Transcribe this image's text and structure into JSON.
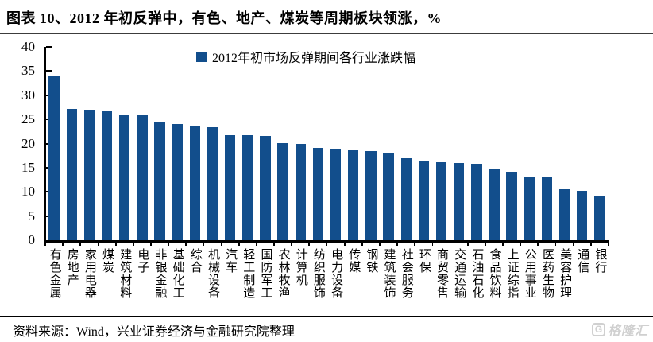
{
  "title": "图表 10、2012 年初反弹中，有色、地产、煤炭等周期板块领涨，%",
  "source": "资料来源：Wind，兴业证券经济与金融研究院整理",
  "logo": {
    "glyph": "G",
    "text": "格隆汇"
  },
  "colors": {
    "bar": "#124E8C",
    "axis": "#000000",
    "title_rule": "#3C3C3C",
    "footer_rule": "#000000",
    "logo": "#D0D0D0"
  },
  "chart_data": {
    "type": "bar",
    "title": "图表 10、2012 年初反弹中，有色、地产、煤炭等周期板块领涨，%",
    "legend": "2012年初市场反弹期间各行业涨跌幅",
    "legend_position": "top-center",
    "grid": false,
    "unit": "%",
    "ylim": [
      0,
      40
    ],
    "yticks": [
      0,
      5,
      10,
      15,
      20,
      25,
      30,
      35,
      40
    ],
    "categories": [
      "有色金属",
      "房地产",
      "家用电器",
      "煤炭",
      "建筑材料",
      "电子",
      "非银金融",
      "基础化工",
      "综合",
      "机械设备",
      "汽车",
      "轻工制造",
      "国防军工",
      "农林牧渔",
      "计算机",
      "纺织服饰",
      "电力设备",
      "传媒",
      "钢铁",
      "建筑装饰",
      "社会服务",
      "环保",
      "商贸零售",
      "交通运输",
      "石油石化",
      "食品饮料",
      "上证综指",
      "公用事业",
      "医药生物",
      "美容护理",
      "通信",
      "银行"
    ],
    "values": [
      34.0,
      27.1,
      27.0,
      26.6,
      26.0,
      25.9,
      24.3,
      24.0,
      23.6,
      23.4,
      21.8,
      21.7,
      21.6,
      20.1,
      19.9,
      19.1,
      19.0,
      18.7,
      18.5,
      18.1,
      16.9,
      16.3,
      16.1,
      15.9,
      15.8,
      14.8,
      14.2,
      13.2,
      13.1,
      10.5,
      10.2,
      9.2
    ]
  }
}
